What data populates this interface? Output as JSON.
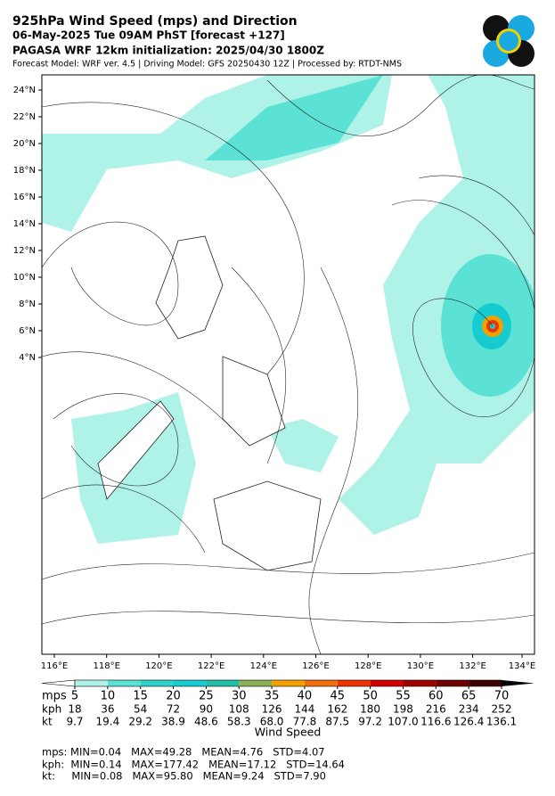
{
  "header": {
    "title": "925hPa Wind Speed (mps) and Direction",
    "lines": [
      "06-May-2025 Tue 09AM PhST [forecast +127]",
      "PAGASA WRF 12km initialization: 2025/04/30 1800Z"
    ],
    "credits": "Forecast Model: WRF ver. 4.5 | Driving Model: GFS 20250430 12Z | Processed by: RTDT-NMS"
  },
  "map": {
    "lat_labels": [
      "24°N",
      "22°N",
      "20°N",
      "18°N",
      "16°N",
      "14°N",
      "12°N",
      "10°N",
      "8°N",
      "6°N",
      "4°N"
    ],
    "lon_labels": [
      "116°E",
      "118°E",
      "120°E",
      "122°E",
      "124°E",
      "126°E",
      "128°E",
      "130°E",
      "132°E",
      "134°E"
    ]
  },
  "colorbar": {
    "label": "Wind Speed",
    "row_names": [
      "mps",
      "kph",
      "kt"
    ],
    "mps": [
      5,
      10,
      15,
      20,
      25,
      30,
      35,
      40,
      45,
      50,
      55,
      60,
      65,
      70
    ],
    "kph": [
      18,
      36,
      54,
      72,
      90,
      108,
      126,
      144,
      162,
      180,
      198,
      216,
      234,
      252
    ],
    "kt": [
      "9.7",
      "19.4",
      "29.2",
      "38.9",
      "48.6",
      "58.3",
      "68.0",
      "77.8",
      "87.5",
      "97.2",
      "107.0",
      "116.6",
      "126.4",
      "136.1"
    ],
    "under_color": "#ffffff",
    "over_color": "#000000",
    "colors": [
      "#aef2e8",
      "#5ce2d4",
      "#2ed4cc",
      "#16ccd0",
      "#22c0a8",
      "#8cb054",
      "#f2a200",
      "#f07010",
      "#f03400",
      "#d40000",
      "#a00000",
      "#700000",
      "#3c0000"
    ]
  },
  "stats": [
    "mps: MIN=0.04   MAX=49.28   MEAN=4.76   STD=4.07",
    "kph:  MIN=0.14   MAX=177.42   MEAN=17.12   STD=14.64",
    "kt:     MIN=0.08   MAX=95.80   MEAN=9.24   STD=7.90"
  ]
}
